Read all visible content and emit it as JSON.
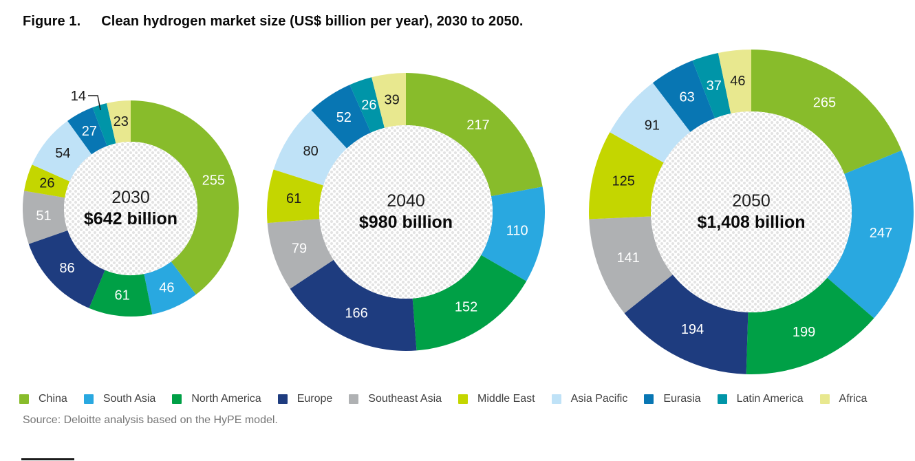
{
  "title": {
    "figure_label": "Figure 1.",
    "text": "Clean hydrogen market size (US$ billion per year), 2030 to 2050."
  },
  "source_text": "Source: Deloitte analysis based on the HyPE model.",
  "regions": [
    {
      "name": "China",
      "color": "#88BC2B",
      "label_color": "#FFFFFF"
    },
    {
      "name": "South Asia",
      "color": "#29A8E0",
      "label_color": "#FFFFFF"
    },
    {
      "name": "North America",
      "color": "#00A046",
      "label_color": "#FFFFFF"
    },
    {
      "name": "Europe",
      "color": "#1E3C7F",
      "label_color": "#FFFFFF"
    },
    {
      "name": "Southeast Asia",
      "color": "#AFB1B3",
      "label_color": "#FFFFFF"
    },
    {
      "name": "Middle East",
      "color": "#C4D600",
      "label_color": "#1A1A1A"
    },
    {
      "name": "Asia Pacific",
      "color": "#BFE2F7",
      "label_color": "#1A1A1A"
    },
    {
      "name": "Eurasia",
      "color": "#0876B3",
      "label_color": "#FFFFFF"
    },
    {
      "name": "Latin America",
      "color": "#0095A8",
      "label_color": "#FFFFFF"
    },
    {
      "name": "Africa",
      "color": "#E8E88F",
      "label_color": "#1A1A1A"
    }
  ],
  "chart_data": {
    "type": "pie",
    "subtype": "donut",
    "direction": "clockwise",
    "start_angle_deg": 0,
    "legend_position": "bottom",
    "categories": [
      "China",
      "South Asia",
      "North America",
      "Europe",
      "Southeast Asia",
      "Middle East",
      "Asia Pacific",
      "Eurasia",
      "Latin America",
      "Africa"
    ],
    "series": [
      {
        "name": "2030",
        "center_year": "2030",
        "center_value": "$642 billion",
        "values": [
          255,
          46,
          61,
          86,
          51,
          26,
          54,
          27,
          14,
          23
        ],
        "outside_label_indices": [
          8
        ]
      },
      {
        "name": "2040",
        "center_year": "2040",
        "center_value": "$980 billion",
        "values": [
          217,
          110,
          152,
          166,
          79,
          61,
          80,
          52,
          26,
          39
        ],
        "outside_label_indices": []
      },
      {
        "name": "2050",
        "center_year": "2050",
        "center_value": "$1,408 billion",
        "values": [
          265,
          247,
          199,
          194,
          141,
          125,
          91,
          63,
          37,
          46
        ],
        "outside_label_indices": []
      }
    ]
  }
}
